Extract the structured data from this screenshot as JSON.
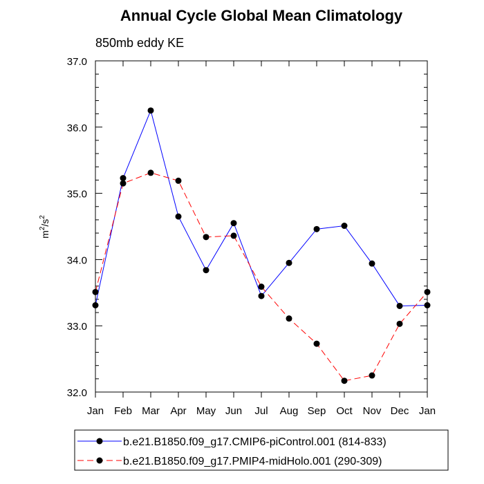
{
  "chart_data": {
    "type": "line",
    "title": "Annual Cycle Global Mean Climatology",
    "subtitle": "850mb eddy KE",
    "xlabel": "",
    "ylabel": "m²/s²",
    "ylabel_base": "m",
    "ylabel_sup1": "2",
    "ylabel_mid": "/s",
    "ylabel_sup2": "2",
    "categories": [
      "Jan",
      "Feb",
      "Mar",
      "Apr",
      "May",
      "Jun",
      "Jul",
      "Aug",
      "Sep",
      "Oct",
      "Nov",
      "Dec",
      "Jan"
    ],
    "ylim": [
      32.0,
      37.0
    ],
    "yticks": [
      "32.0",
      "33.0",
      "34.0",
      "35.0",
      "36.0",
      "37.0"
    ],
    "series": [
      {
        "name": "b.e21.B1850.f09_g17.CMIP6-piControl.001 (814-833)",
        "color": "#0000ff",
        "style": "solid",
        "values": [
          33.31,
          35.23,
          36.25,
          34.65,
          33.84,
          34.55,
          33.45,
          33.95,
          34.46,
          34.51,
          33.94,
          33.3,
          33.31
        ]
      },
      {
        "name": "b.e21.B1850.f09_g17.PMIP4-midHolo.001 (290-309)",
        "color": "#ff0000",
        "style": "dashed",
        "values": [
          33.51,
          35.15,
          35.31,
          35.19,
          34.34,
          34.36,
          33.59,
          33.11,
          32.73,
          32.17,
          32.25,
          33.03,
          33.51
        ]
      }
    ]
  }
}
